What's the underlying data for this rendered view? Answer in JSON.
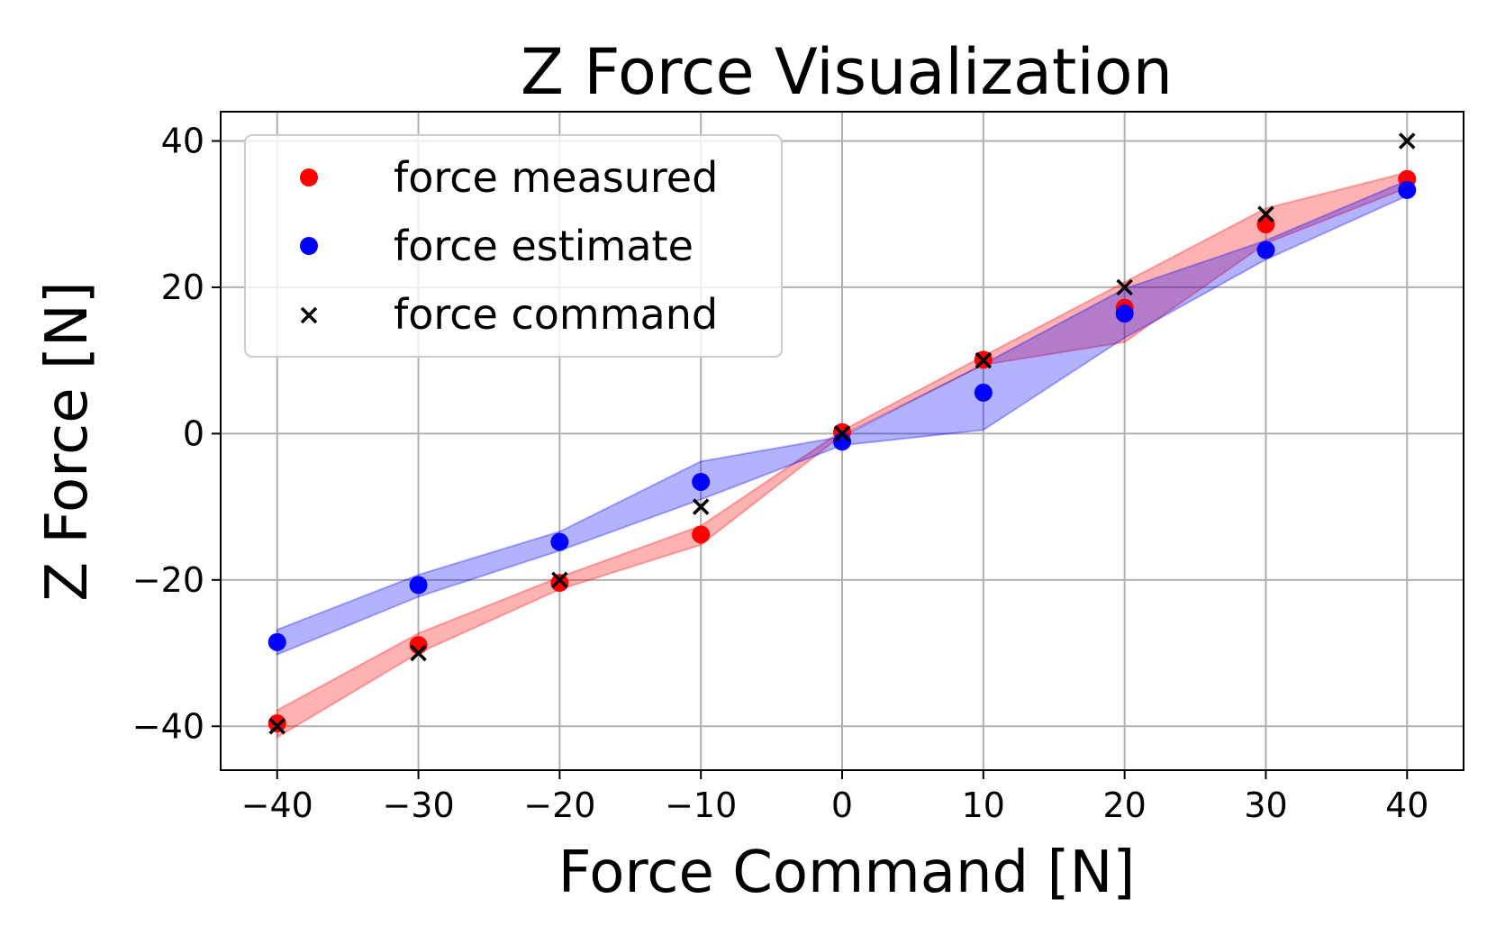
{
  "chart_data": {
    "type": "scatter",
    "title": "Z Force Visualization",
    "xlabel": "Force Command [N]",
    "ylabel": "Z Force [N]",
    "xlim": [
      -44,
      44
    ],
    "ylim": [
      -46,
      44
    ],
    "xticks": [
      -40,
      -30,
      -20,
      -10,
      0,
      10,
      20,
      30,
      40
    ],
    "yticks": [
      -40,
      -20,
      0,
      20,
      40
    ],
    "xtick_labels": [
      "−40",
      "−30",
      "−20",
      "−10",
      "0",
      "10",
      "20",
      "30",
      "40"
    ],
    "ytick_labels": [
      "−40",
      "−20",
      "0",
      "20",
      "40"
    ],
    "grid": true,
    "legend_position": "upper-left",
    "x": [
      -40,
      -30,
      -20,
      -10,
      0,
      10,
      20,
      30,
      40
    ],
    "series": [
      {
        "name": "force measured",
        "marker": "circle",
        "color": "#ff0000",
        "values": [
          -39.6,
          -28.9,
          -20.4,
          -13.8,
          0.2,
          10.1,
          17.2,
          28.6,
          34.8
        ],
        "band_lower": [
          -41.5,
          -30.0,
          -21.3,
          -15.2,
          -0.2,
          9.4,
          12.5,
          26.0,
          33.6
        ],
        "band_upper": [
          -37.8,
          -27.3,
          -19.6,
          -12.6,
          0.4,
          10.6,
          20.7,
          30.8,
          35.7
        ]
      },
      {
        "name": "force estimate",
        "marker": "circle",
        "color": "#0000ff",
        "values": [
          -28.5,
          -20.7,
          -14.8,
          -6.6,
          -1.1,
          5.6,
          16.4,
          25.1,
          33.3
        ],
        "band_lower": [
          -30.2,
          -22.3,
          -16.0,
          -9.0,
          -1.6,
          0.5,
          13.1,
          23.8,
          32.5
        ],
        "band_upper": [
          -26.8,
          -19.3,
          -13.4,
          -3.8,
          -0.4,
          9.5,
          19.8,
          26.4,
          34.6
        ]
      },
      {
        "name": "force command",
        "marker": "x",
        "color": "#000000",
        "values": [
          -40,
          -30,
          -20,
          -10,
          0,
          10,
          20,
          30,
          40
        ]
      }
    ]
  }
}
